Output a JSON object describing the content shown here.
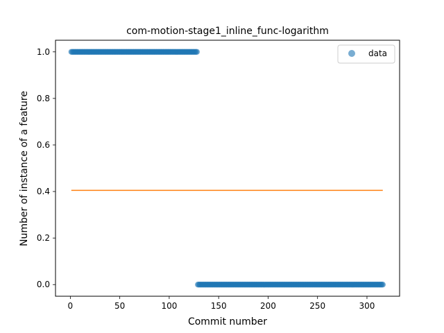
{
  "chart_data": {
    "type": "scatter",
    "title": "com-motion-stage1_inline_func-logarithm",
    "xlabel": "Commit number",
    "ylabel": "Number of instance of a feature",
    "xlim": [
      -15,
      333
    ],
    "ylim": [
      -0.05,
      1.05
    ],
    "xticks": [
      0,
      50,
      100,
      150,
      200,
      250,
      300
    ],
    "yticks": [
      0.0,
      0.2,
      0.4,
      0.6,
      0.8,
      1.0
    ],
    "xtick_labels": [
      "0",
      "50",
      "100",
      "150",
      "200",
      "250",
      "300"
    ],
    "ytick_labels": [
      "0.0",
      "0.2",
      "0.4",
      "0.6",
      "0.8",
      "1.0"
    ],
    "grid": false,
    "legend": {
      "position": "top-right",
      "entries": [
        "data"
      ]
    },
    "colors": {
      "data": "#1f77b4",
      "fit": "#ff7f0e"
    },
    "series": [
      {
        "name": "data",
        "kind": "points",
        "segments": [
          {
            "x_start": 1,
            "x_end": 128,
            "step": 1,
            "y": 1.0
          },
          {
            "x_start": 129,
            "x_end": 316,
            "step": 1,
            "y": 0.0
          }
        ]
      },
      {
        "kind": "line",
        "x": [
          1,
          316
        ],
        "y": [
          0.405,
          0.405
        ]
      }
    ]
  }
}
